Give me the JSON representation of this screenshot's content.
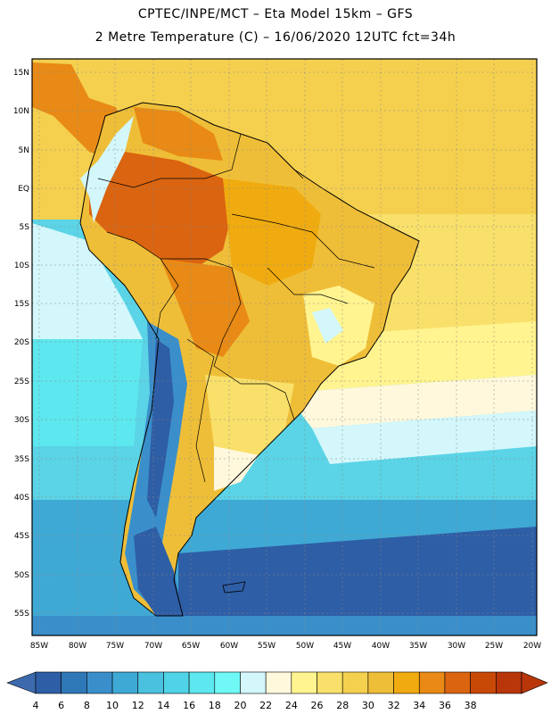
{
  "header": {
    "title_line1": "CPTEC/INPE/MCT –  Eta Model 15km – GFS",
    "title_line2": "2 Metre Temperature (C) – 16/06/2020 12UTC fct=34h"
  },
  "map": {
    "lat_labels": [
      "15N",
      "10N",
      "5N",
      "EQ",
      "5S",
      "10S",
      "15S",
      "20S",
      "25S",
      "30S",
      "35S",
      "40S",
      "45S",
      "50S",
      "55S"
    ],
    "lon_labels": [
      "85W",
      "80W",
      "75W",
      "70W",
      "65W",
      "60W",
      "55W",
      "50W",
      "45W",
      "40W",
      "35W",
      "30W",
      "25W",
      "20W"
    ]
  },
  "colorbar": {
    "labels": [
      "4",
      "6",
      "8",
      "10",
      "12",
      "14",
      "16",
      "18",
      "20",
      "22",
      "24",
      "26",
      "28",
      "30",
      "32",
      "34",
      "36",
      "38"
    ],
    "colors": [
      "#2e5ea6",
      "#2f78b8",
      "#3a8fcb",
      "#3fa9d5",
      "#49c1df",
      "#4fd3e6",
      "#5de7ee",
      "#6ff8f6",
      "#d3f7fb",
      "#fff8dd",
      "#fff48f",
      "#f9e06a",
      "#f5d04f",
      "#efbe38",
      "#f0ab10",
      "#e88a15",
      "#da6410",
      "#c84806",
      "#b8360a"
    ],
    "under_color": "#3c6aad",
    "over_color": "#b8360a"
  }
}
